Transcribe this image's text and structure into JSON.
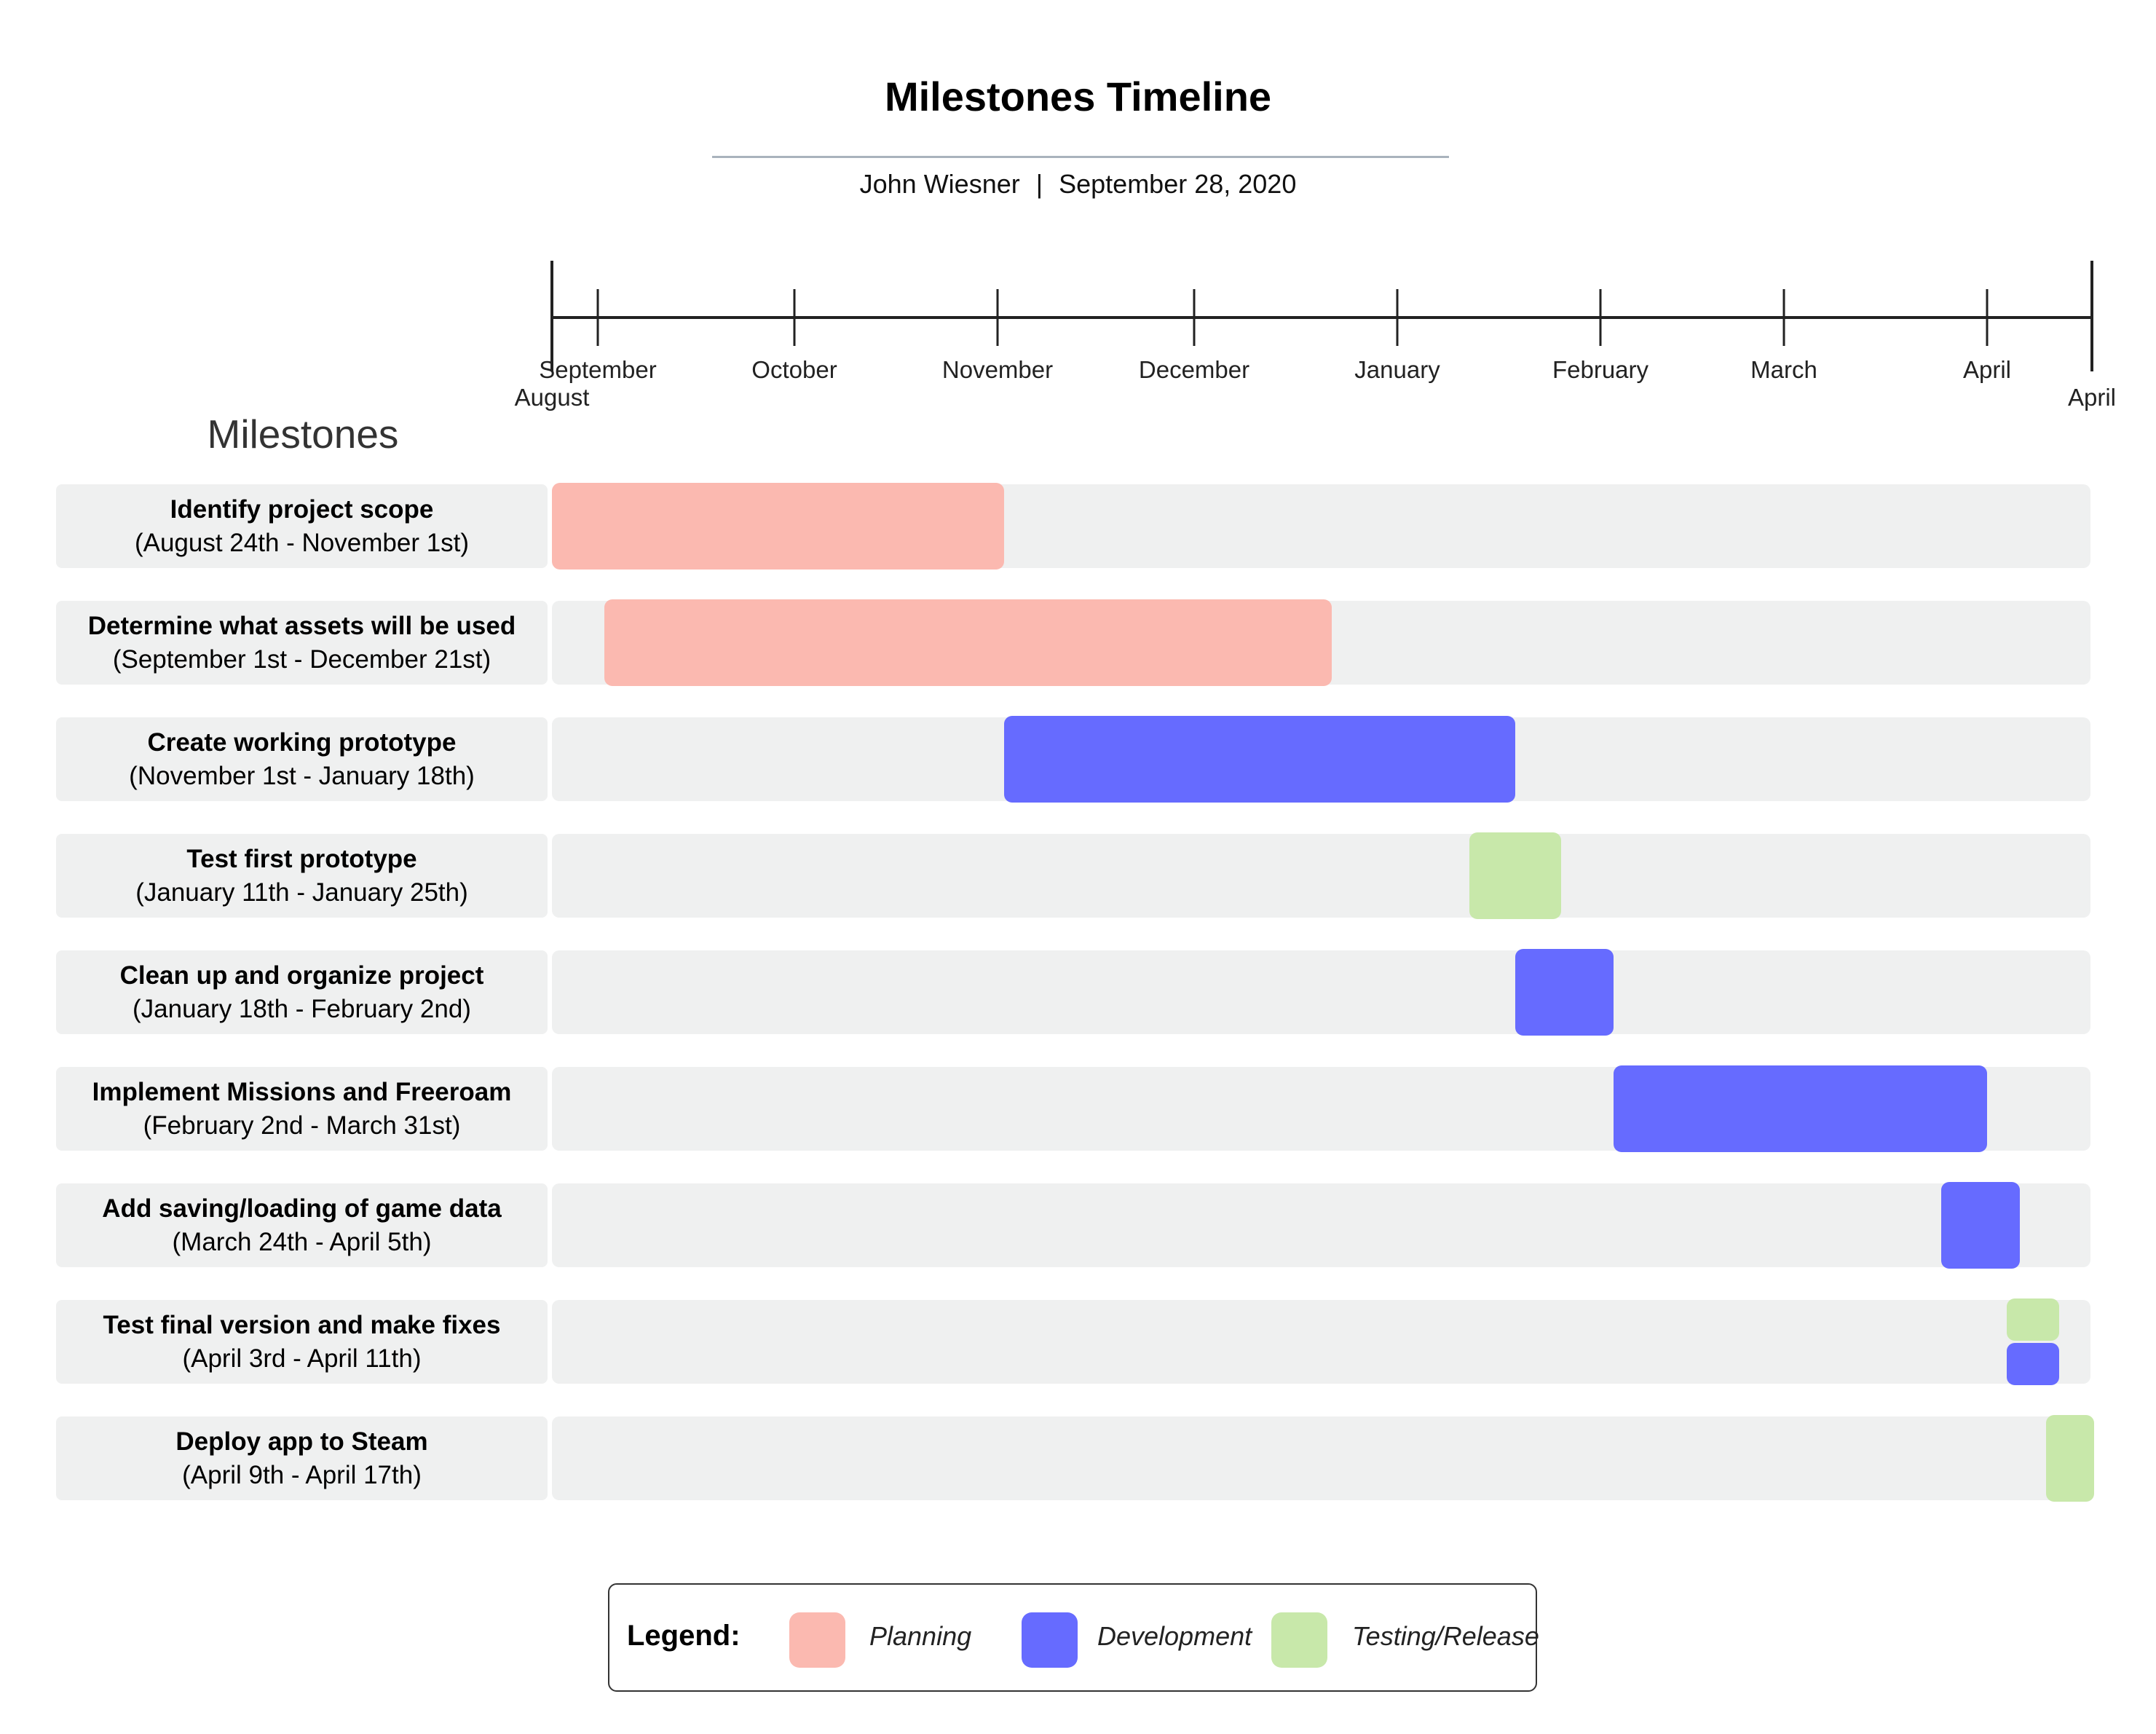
{
  "title": "Milestones Timeline",
  "author": "John Wiesner",
  "separator": "|",
  "date": "September 28, 2020",
  "section_heading": "Milestones",
  "colors": {
    "Planning": "#fbb9b0",
    "Development": "#666bff",
    "Testing/Release": "#c8e8aa",
    "track": "#eff0f0",
    "axis": "#222222"
  },
  "chart_data": {
    "type": "gantt",
    "title": "Milestones Timeline",
    "x_unit": "days since August 24, 2020",
    "xlim": [
      0,
      235
    ],
    "axis_end_labels": [
      {
        "label": "August",
        "day": 0
      },
      {
        "label": "April",
        "day": 235
      }
    ],
    "month_ticks": [
      {
        "label": "September",
        "day": 7
      },
      {
        "label": "October",
        "day": 37
      },
      {
        "label": "November",
        "day": 68
      },
      {
        "label": "December",
        "day": 98
      },
      {
        "label": "January",
        "day": 129
      },
      {
        "label": "February",
        "day": 160
      },
      {
        "label": "March",
        "day": 188
      },
      {
        "label": "April",
        "day": 219
      }
    ],
    "tasks": [
      {
        "name": "Identify project scope",
        "range": "(August 24th - November 1st)",
        "bars": [
          {
            "start": 0,
            "end": 69,
            "category": "Planning"
          }
        ]
      },
      {
        "name": "Determine what assets will be used",
        "range": "(September 1st - December 21st)",
        "bars": [
          {
            "start": 8,
            "end": 119,
            "category": "Planning"
          }
        ]
      },
      {
        "name": "Create working prototype",
        "range": "(November 1st - January 18th)",
        "bars": [
          {
            "start": 69,
            "end": 147,
            "category": "Development"
          }
        ]
      },
      {
        "name": "Test first prototype",
        "range": "(January 11th - January 25th)",
        "bars": [
          {
            "start": 140,
            "end": 154,
            "category": "Testing/Release"
          }
        ]
      },
      {
        "name": "Clean up and organize project",
        "range": "(January 18th - February 2nd)",
        "bars": [
          {
            "start": 147,
            "end": 162,
            "category": "Development"
          }
        ]
      },
      {
        "name": "Implement Missions and Freeroam",
        "range": "(February 2nd - March 31st)",
        "bars": [
          {
            "start": 162,
            "end": 219,
            "category": "Development"
          }
        ]
      },
      {
        "name": "Add saving/loading of game data",
        "range": "(March 24th - April 5th)",
        "bars": [
          {
            "start": 212,
            "end": 224,
            "category": "Development"
          }
        ]
      },
      {
        "name": "Test final version and make fixes",
        "range": "(April 3rd - April 11th)",
        "bars": [
          {
            "start": 222,
            "end": 230,
            "category": "Testing/Release",
            "lane": "top"
          },
          {
            "start": 222,
            "end": 230,
            "category": "Development",
            "lane": "bottom"
          }
        ]
      },
      {
        "name": "Deploy app to Steam",
        "range": "(April 9th - April 17th)",
        "bars": [
          {
            "start": 228,
            "end": 236,
            "category": "Testing/Release"
          }
        ]
      }
    ],
    "legend": {
      "title": "Legend:",
      "items": [
        {
          "label": "Planning",
          "color": "#fbb9b0"
        },
        {
          "label": "Development",
          "color": "#666bff"
        },
        {
          "label": "Testing/Release",
          "color": "#c8e8aa"
        }
      ]
    }
  }
}
